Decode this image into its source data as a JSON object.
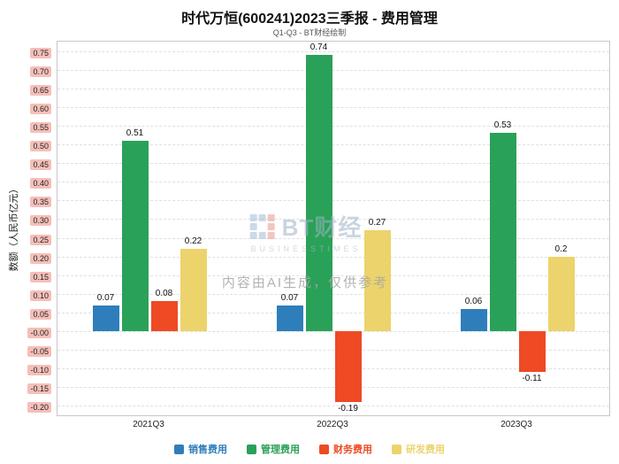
{
  "watermark": {
    "logo_text": "BT财经",
    "logo_sub": "BUSINESSTIMES",
    "ai_note": "内容由AI生成，仅供参考"
  },
  "chart_data": {
    "type": "bar",
    "title": "时代万恒(600241)2023三季报 - 费用管理",
    "subtitle": "Q1-Q3 - BT财经绘制",
    "ylabel": "数额（人民币亿元）",
    "categories": [
      "2021Q3",
      "2022Q3",
      "2023Q3"
    ],
    "series": [
      {
        "key": "sales",
        "name": "销售费用",
        "color": "#2e7ebb",
        "values": [
          0.07,
          0.07,
          0.06
        ]
      },
      {
        "key": "management",
        "name": "管理费用",
        "color": "#2aa158",
        "values": [
          0.51,
          0.74,
          0.53
        ]
      },
      {
        "key": "finance",
        "name": "财务费用",
        "color": "#ee4a24",
        "values": [
          0.08,
          -0.19,
          -0.11
        ]
      },
      {
        "key": "rd",
        "name": "研发费用",
        "color": "#ecd36b",
        "values": [
          0.22,
          0.27,
          0.2
        ]
      }
    ],
    "ylim": [
      -0.225,
      0.775
    ],
    "ytick_labels": [
      "0.75",
      "0.70",
      "0.65",
      "0.60",
      "0.55",
      "0.50",
      "0.45",
      "0.40",
      "0.35",
      "0.30",
      "0.25",
      "0.20",
      "0.15",
      "0.10",
      "0.05",
      "-0.00",
      "-0.05",
      "-0.10",
      "-0.15",
      "-0.20"
    ],
    "grid": true,
    "legend_position": "bottom"
  }
}
